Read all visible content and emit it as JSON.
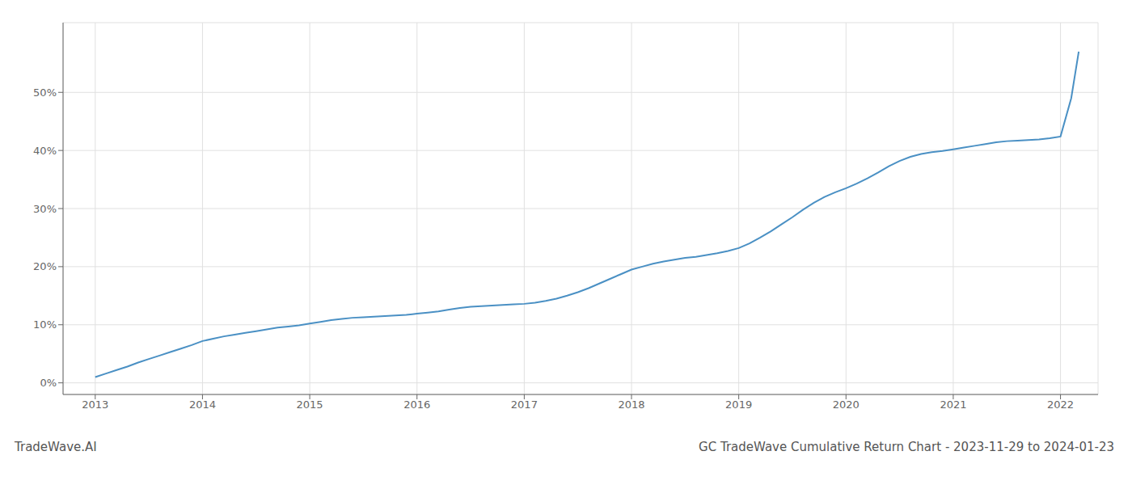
{
  "chart_data": {
    "type": "line",
    "title": "GC TradeWave Cumulative Return Chart - 2023-11-29 to 2024-01-23",
    "annotations": [
      "TradeWave.AI"
    ],
    "color": "#4a90c4",
    "grid": true,
    "x": [
      2013.0,
      2013.1,
      2013.2,
      2013.3,
      2013.4,
      2013.5,
      2013.6,
      2013.7,
      2013.8,
      2013.9,
      2014.0,
      2014.1,
      2014.2,
      2014.3,
      2014.4,
      2014.5,
      2014.6,
      2014.7,
      2014.8,
      2014.9,
      2015.0,
      2015.1,
      2015.2,
      2015.3,
      2015.4,
      2015.5,
      2015.6,
      2015.7,
      2015.8,
      2015.9,
      2016.0,
      2016.1,
      2016.2,
      2016.3,
      2016.4,
      2016.5,
      2016.6,
      2016.7,
      2016.8,
      2016.9,
      2017.0,
      2017.1,
      2017.2,
      2017.3,
      2017.4,
      2017.5,
      2017.6,
      2017.7,
      2017.8,
      2017.9,
      2018.0,
      2018.1,
      2018.2,
      2018.3,
      2018.4,
      2018.5,
      2018.6,
      2018.7,
      2018.8,
      2018.9,
      2019.0,
      2019.1,
      2019.2,
      2019.3,
      2019.4,
      2019.5,
      2019.6,
      2019.7,
      2019.8,
      2019.9,
      2020.0,
      2020.1,
      2020.2,
      2020.3,
      2020.4,
      2020.5,
      2020.6,
      2020.7,
      2020.8,
      2020.9,
      2021.0,
      2021.1,
      2021.2,
      2021.3,
      2021.4,
      2021.5,
      2021.6,
      2021.7,
      2021.8,
      2021.9,
      2022.0,
      2022.1,
      2022.17
    ],
    "values": [
      1.0,
      1.6,
      2.2,
      2.8,
      3.5,
      4.1,
      4.7,
      5.3,
      5.9,
      6.5,
      7.2,
      7.6,
      8.0,
      8.3,
      8.6,
      8.9,
      9.2,
      9.5,
      9.7,
      9.9,
      10.2,
      10.5,
      10.8,
      11.0,
      11.2,
      11.3,
      11.4,
      11.5,
      11.6,
      11.7,
      11.9,
      12.1,
      12.3,
      12.6,
      12.9,
      13.1,
      13.2,
      13.3,
      13.4,
      13.5,
      13.6,
      13.8,
      14.1,
      14.5,
      15.0,
      15.6,
      16.3,
      17.1,
      17.9,
      18.7,
      19.5,
      20.0,
      20.5,
      20.9,
      21.2,
      21.5,
      21.7,
      22.0,
      22.3,
      22.7,
      23.2,
      24.0,
      25.0,
      26.1,
      27.3,
      28.5,
      29.8,
      31.0,
      32.0,
      32.8,
      33.5,
      34.3,
      35.2,
      36.2,
      37.3,
      38.2,
      38.9,
      39.4,
      39.7,
      39.9,
      40.2,
      40.5,
      40.8,
      41.1,
      41.4,
      41.6,
      41.7,
      41.8,
      41.9,
      42.1,
      42.4,
      49.0,
      57.0
    ],
    "xlim": [
      2012.7,
      2022.35
    ],
    "xticks": [
      2013,
      2014,
      2015,
      2016,
      2017,
      2018,
      2019,
      2020,
      2021,
      2022
    ],
    "ylim": [
      -2,
      62
    ],
    "yticks": [
      {
        "value": 0,
        "label": "0%"
      },
      {
        "value": 10,
        "label": "10%"
      },
      {
        "value": 20,
        "label": "20%"
      },
      {
        "value": 30,
        "label": "30%"
      },
      {
        "value": 40,
        "label": "40%"
      },
      {
        "value": 50,
        "label": "50%"
      }
    ]
  }
}
